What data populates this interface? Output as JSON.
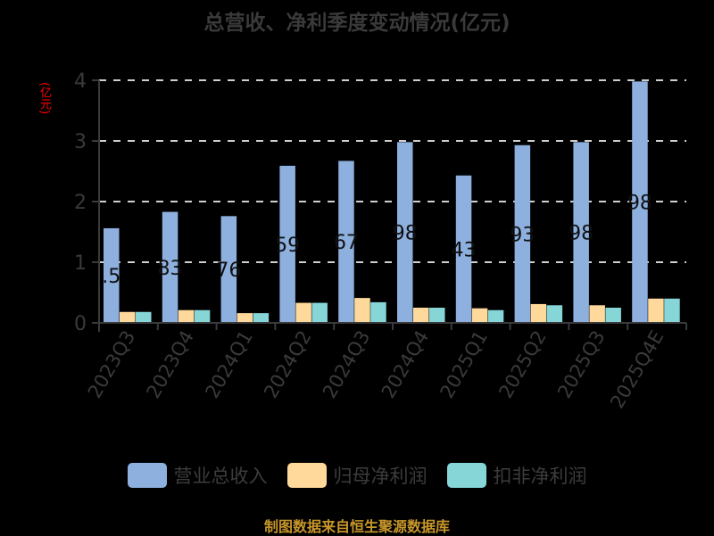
{
  "title": "总营收、净利季度变动情况(亿元)",
  "unit_label": "(亿元)",
  "footer": "制图数据来自恒生聚源数据库",
  "colors": {
    "revenue": "#8eb0df",
    "net_profit": "#ffd99b",
    "deducted_net_profit": "#86d6d8",
    "grid": "#cfcfcf",
    "axis": "#3a3a3a",
    "unit": "#ff0000",
    "footer": "#c8962a"
  },
  "legend": [
    {
      "label": "营业总收入",
      "color": "#8eb0df"
    },
    {
      "label": "归母净利润",
      "color": "#ffd99b"
    },
    {
      "label": "扣非净利润",
      "color": "#86d6d8"
    }
  ],
  "chart_data": {
    "type": "bar",
    "title": "总营收、净利季度变动情况(亿元)",
    "xlabel": "",
    "ylabel": "(亿元)",
    "ylim": [
      0,
      4
    ],
    "yticks": [
      0,
      1,
      2,
      3,
      4
    ],
    "grid": true,
    "legend_position": "bottom",
    "categories": [
      "2023Q3",
      "2023Q4",
      "2024Q1",
      "2024Q2",
      "2024Q3",
      "2024Q4",
      "2025Q1",
      "2025Q2",
      "2025Q3",
      "2025Q4E"
    ],
    "series": [
      {
        "name": "营业总收入",
        "values": [
          1.56,
          1.83,
          1.76,
          2.59,
          2.67,
          2.98,
          2.43,
          2.93,
          2.98,
          3.98
        ],
        "data_labels": [
          ".5",
          "83",
          "76",
          "59",
          "67",
          "98",
          "43",
          "93",
          "98",
          "98"
        ]
      },
      {
        "name": "归母净利润",
        "values": [
          0.18,
          0.21,
          0.16,
          0.33,
          0.41,
          0.25,
          0.24,
          0.31,
          0.29,
          0.4
        ]
      },
      {
        "name": "扣非净利润",
        "values": [
          0.18,
          0.21,
          0.16,
          0.33,
          0.34,
          0.25,
          0.21,
          0.29,
          0.25,
          0.4
        ]
      }
    ]
  }
}
